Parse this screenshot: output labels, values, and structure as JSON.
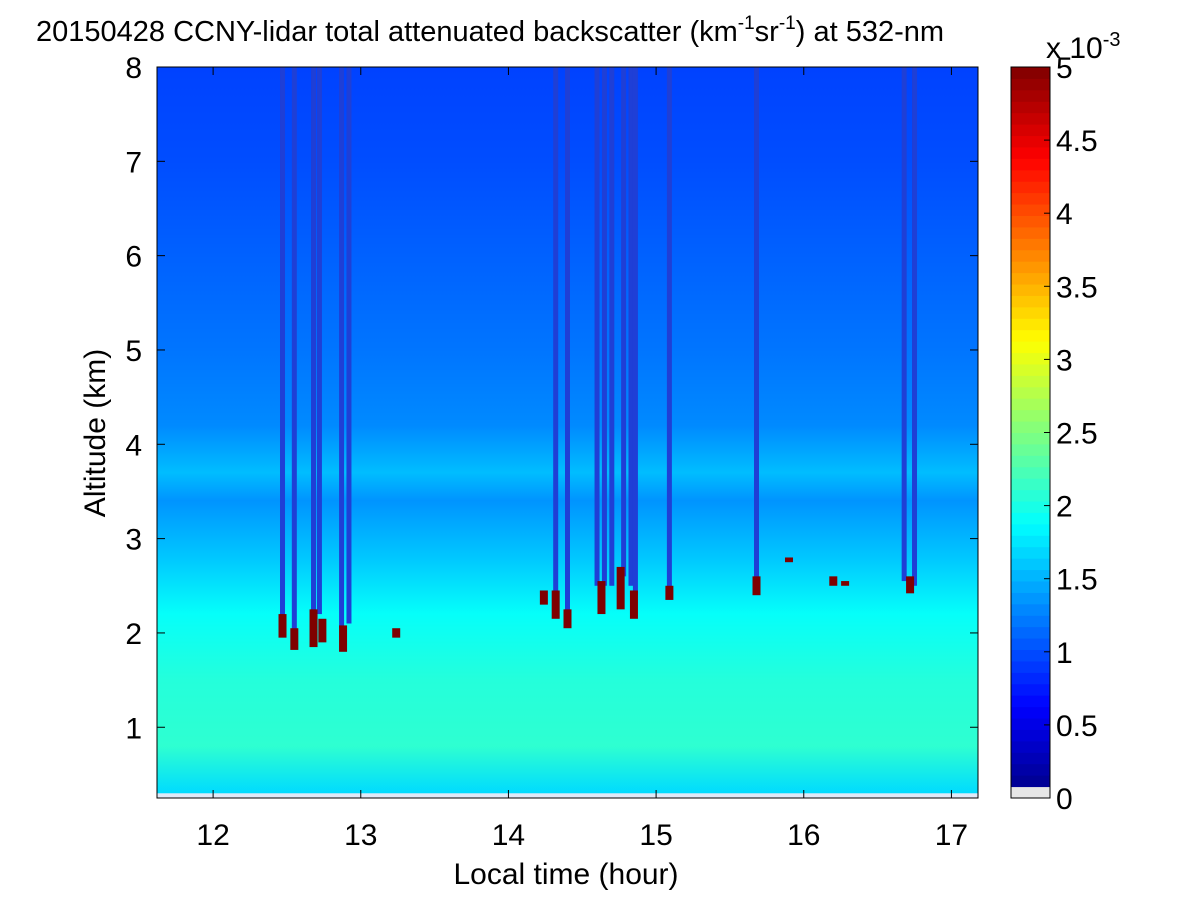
{
  "chart_data": {
    "type": "heatmap",
    "title": {
      "prefix": "20150428 CCNY-lidar total attenuated backscatter (km",
      "sup1": "-1",
      "mid": "sr",
      "sup2": "-1",
      "suffix": ") at 532-nm"
    },
    "xlabel": "Local time (hour)",
    "ylabel": "Altitude (km)",
    "xlim": [
      11.62,
      17.18
    ],
    "ylim": [
      0.25,
      8
    ],
    "x_ticks": [
      12,
      13,
      14,
      15,
      16,
      17
    ],
    "y_ticks": [
      1,
      2,
      3,
      4,
      5,
      6,
      7,
      8
    ],
    "colorbar": {
      "range": [
        0,
        5
      ],
      "ticks": [
        "0",
        "0.5",
        "1",
        "1.5",
        "2",
        "2.5",
        "3",
        "3.5",
        "4",
        "4.5",
        "5"
      ],
      "exponent_base": "x 10",
      "exponent": "-3",
      "colormap": "jet"
    },
    "background_profile": [
      {
        "altitude": 0.3,
        "value": 1.7
      },
      {
        "altitude": 0.8,
        "value": 2.1
      },
      {
        "altitude": 1.5,
        "value": 2.05
      },
      {
        "altitude": 2.2,
        "value": 1.9
      },
      {
        "altitude": 2.8,
        "value": 1.6
      },
      {
        "altitude": 3.4,
        "value": 1.35
      },
      {
        "altitude": 3.7,
        "value": 1.55
      },
      {
        "altitude": 4.2,
        "value": 1.3
      },
      {
        "altitude": 5.0,
        "value": 1.2
      },
      {
        "altitude": 6.0,
        "value": 1.1
      },
      {
        "altitude": 7.0,
        "value": 1.0
      },
      {
        "altitude": 8.0,
        "value": 0.95
      }
    ],
    "attenuated_columns": [
      {
        "time": 12.47,
        "cloud_base": 2.15
      },
      {
        "time": 12.55,
        "cloud_base": 2.0
      },
      {
        "time": 12.68,
        "cloud_base": 2.2
      },
      {
        "time": 12.72,
        "cloud_base": 2.2
      },
      {
        "time": 12.87,
        "cloud_base": 2.05
      },
      {
        "time": 12.92,
        "cloud_base": 2.1
      },
      {
        "time": 14.32,
        "cloud_base": 2.4
      },
      {
        "time": 14.4,
        "cloud_base": 2.2
      },
      {
        "time": 14.6,
        "cloud_base": 2.5
      },
      {
        "time": 14.65,
        "cloud_base": 2.5
      },
      {
        "time": 14.7,
        "cloud_base": 2.5
      },
      {
        "time": 14.78,
        "cloud_base": 2.6
      },
      {
        "time": 14.83,
        "cloud_base": 2.5
      },
      {
        "time": 14.86,
        "cloud_base": 2.4
      },
      {
        "time": 15.09,
        "cloud_base": 2.45
      },
      {
        "time": 15.68,
        "cloud_base": 2.55
      },
      {
        "time": 16.68,
        "cloud_base": 2.55
      },
      {
        "time": 16.75,
        "cloud_base": 2.5
      }
    ],
    "cloud_patches": [
      {
        "time": 12.47,
        "bottom": 1.95,
        "top": 2.2
      },
      {
        "time": 12.55,
        "bottom": 1.82,
        "top": 2.05
      },
      {
        "time": 12.68,
        "bottom": 1.85,
        "top": 2.25
      },
      {
        "time": 12.74,
        "bottom": 1.9,
        "top": 2.15
      },
      {
        "time": 12.88,
        "bottom": 1.8,
        "top": 2.08
      },
      {
        "time": 13.24,
        "bottom": 1.95,
        "top": 2.05
      },
      {
        "time": 14.24,
        "bottom": 2.3,
        "top": 2.45
      },
      {
        "time": 14.32,
        "bottom": 2.15,
        "top": 2.45
      },
      {
        "time": 14.4,
        "bottom": 2.05,
        "top": 2.25
      },
      {
        "time": 14.63,
        "bottom": 2.2,
        "top": 2.55
      },
      {
        "time": 14.76,
        "bottom": 2.25,
        "top": 2.7
      },
      {
        "time": 14.85,
        "bottom": 2.15,
        "top": 2.45
      },
      {
        "time": 15.09,
        "bottom": 2.35,
        "top": 2.5
      },
      {
        "time": 15.68,
        "bottom": 2.4,
        "top": 2.6
      },
      {
        "time": 15.9,
        "bottom": 2.75,
        "top": 2.8
      },
      {
        "time": 16.2,
        "bottom": 2.5,
        "top": 2.6
      },
      {
        "time": 16.28,
        "bottom": 2.5,
        "top": 2.55
      },
      {
        "time": 16.72,
        "bottom": 2.42,
        "top": 2.6
      }
    ]
  }
}
